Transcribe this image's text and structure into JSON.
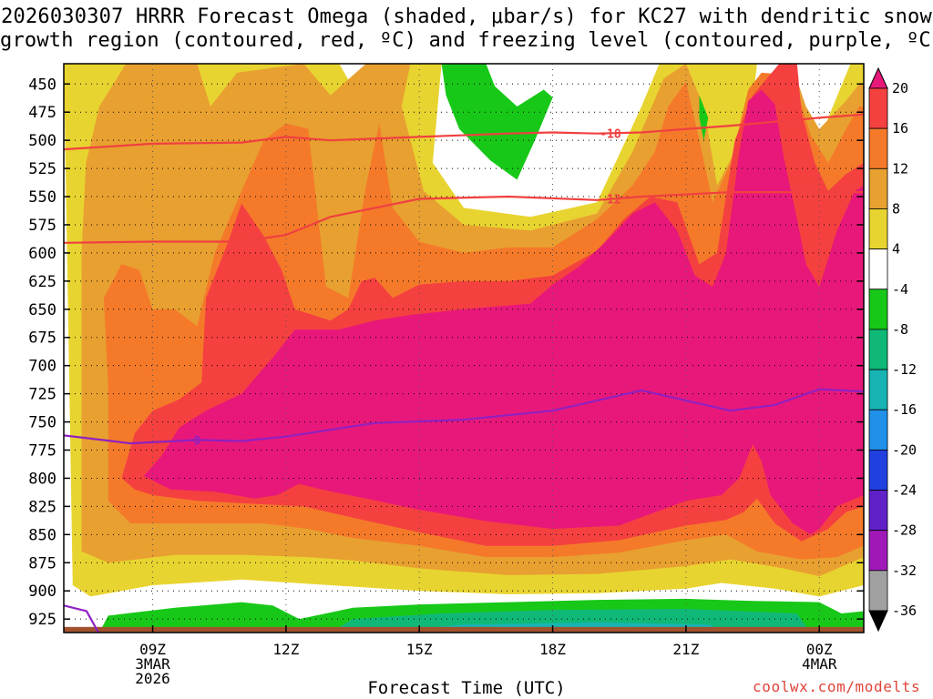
{
  "chart_data": {
    "type": "heatmap",
    "title_line1": "2026030307 HRRR Forecast Omega (shaded, μbar/s) for KC27 with dendritic snow",
    "title_line2": "growth region (contoured, red, ºC) and freezing level (contoured, purple, ºC)",
    "xlabel": "Forecast Time (UTC)",
    "ylabel": "Pressure (mb)",
    "credit": "coolwx.com/modelts",
    "pressure_ticks": [
      450,
      475,
      500,
      525,
      550,
      575,
      600,
      625,
      650,
      675,
      700,
      725,
      750,
      775,
      800,
      825,
      850,
      875,
      900,
      925
    ],
    "time_ticks": [
      {
        "hour": 9,
        "lines": [
          "09Z",
          "3MAR",
          "2026"
        ]
      },
      {
        "hour": 12,
        "lines": [
          "12Z"
        ]
      },
      {
        "hour": 15,
        "lines": [
          "15Z"
        ]
      },
      {
        "hour": 18,
        "lines": [
          "18Z"
        ]
      },
      {
        "hour": 21,
        "lines": [
          "21Z"
        ]
      },
      {
        "hour": 24,
        "lines": [
          "00Z",
          "4MAR"
        ]
      }
    ],
    "x_range_hours": [
      7.0,
      25.0
    ],
    "y_range_mb": [
      432,
      937
    ],
    "colorbar": {
      "labels": [
        "20",
        "16",
        "12",
        "8",
        "4",
        "-4",
        "-8",
        "-12",
        "-16",
        "-20",
        "-24",
        "-28",
        "-32",
        "-36"
      ],
      "colors": [
        "#e8187a",
        "#f54040",
        "#f47a2a",
        "#e8a030",
        "#e8d430",
        "#ffffff",
        "#18c818",
        "#10b878",
        "#18b4b4",
        "#2090e8",
        "#2040e0",
        "#6020c8",
        "#a018b8",
        "#a0a0a0",
        "#000000"
      ]
    },
    "omega_fill_colors": {
      "c4_8": "#e8d430",
      "c8_12": "#e8a030",
      "c12_16": "#f47a2a",
      "c16_20": "#f54040",
      "c20": "#e8187a",
      "neg4_8": "#18c818",
      "neg8_12": "#10b878",
      "neg12_16": "#18b4b4",
      "ground": "#a0522d"
    },
    "isotherm_minus18": {
      "label": "-18",
      "points": [
        [
          7.0,
          508
        ],
        [
          9.0,
          503
        ],
        [
          11.0,
          502
        ],
        [
          12.0,
          497
        ],
        [
          13.0,
          500
        ],
        [
          15.0,
          497
        ],
        [
          17.0,
          494
        ],
        [
          18.0,
          493
        ],
        [
          19.0,
          494
        ],
        [
          20.0,
          493
        ],
        [
          22.0,
          487
        ],
        [
          24.0,
          480
        ],
        [
          25.0,
          477
        ]
      ]
    },
    "isotherm_minus12": {
      "label": "-12",
      "points": [
        [
          7.0,
          591
        ],
        [
          9.0,
          590
        ],
        [
          11.0,
          590
        ],
        [
          12.0,
          584
        ],
        [
          13.0,
          568
        ],
        [
          15.0,
          552
        ],
        [
          17.0,
          550
        ],
        [
          19.0,
          553
        ],
        [
          20.0,
          550
        ],
        [
          22.0,
          546
        ],
        [
          24.0,
          546
        ],
        [
          25.0,
          546
        ]
      ]
    },
    "freezing_level": {
      "label": "0",
      "points": [
        [
          7.0,
          762
        ],
        [
          8.5,
          769
        ],
        [
          10.0,
          766
        ],
        [
          11.0,
          767
        ],
        [
          12.0,
          763
        ],
        [
          14.0,
          751
        ],
        [
          16.0,
          748
        ],
        [
          18.0,
          740
        ],
        [
          20.0,
          722
        ],
        [
          22.0,
          740
        ],
        [
          23.0,
          735
        ],
        [
          24.0,
          721
        ],
        [
          25.0,
          723
        ]
      ]
    }
  }
}
